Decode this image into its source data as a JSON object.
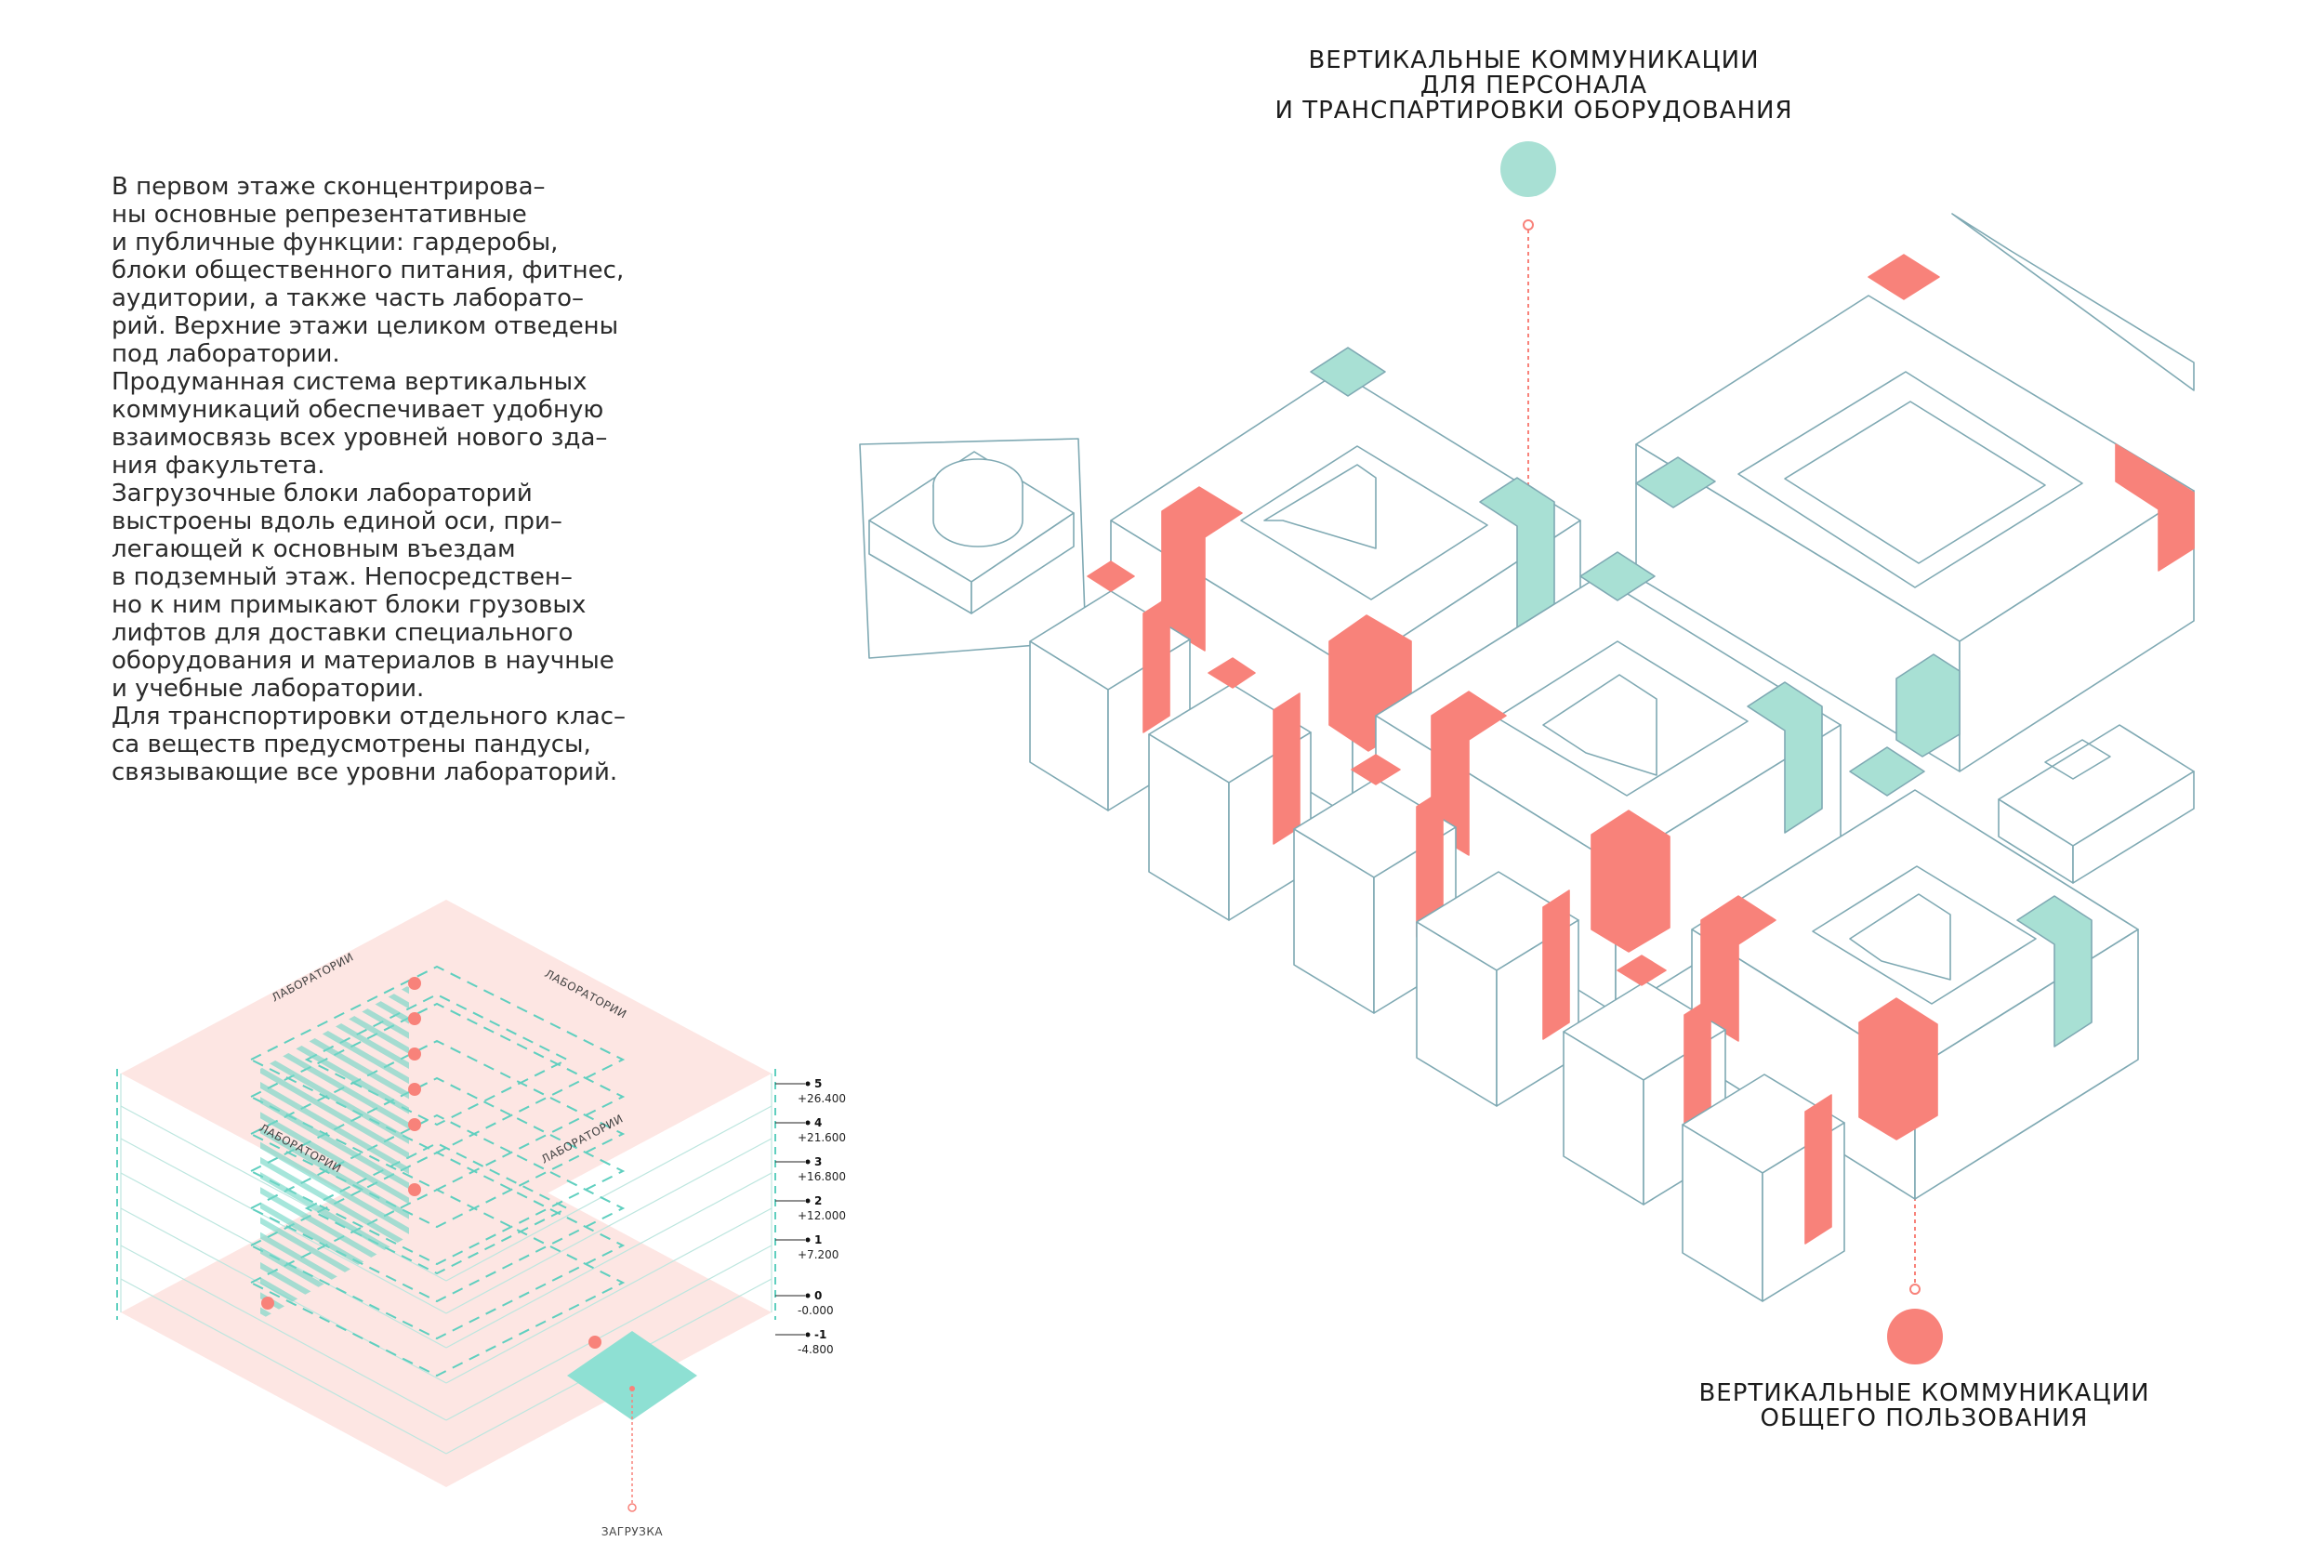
{
  "description": {
    "paragraphs": [
      [
        "В первом этаже сконцентрирова–",
        "ны основные репрезентативные",
        "и публичные функции: гардеробы,",
        "блоки общественного питания, фитнес,",
        "аудитории, а также часть лаборато–",
        "рий. Верхние этажи целиком отведены",
        "под лаборатории."
      ],
      [
        "Продуманная система вертикальных",
        "коммуникаций обеспечивает удобную",
        "взаимосвязь всех уровней нового зда–",
        "ния факультета."
      ],
      [
        "Загрузочные блоки лабораторий",
        "выстроены вдоль единой оси, при–",
        "легающей к основным въездам",
        "в подземный этаж. Непосредствен–",
        "но к ним примыкают блоки грузовых",
        "лифтов для доставки специального",
        "оборудования и материалов в научные",
        "и учебные лаборатории."
      ],
      [
        "Для транспортировки отдельного клас–",
        "са веществ предусмотрены пандусы,",
        "связывающие все уровни лабораторий."
      ]
    ]
  },
  "callouts": {
    "staff": {
      "lines": [
        "ВЕРТИКАЛЬНЫЕ КОММУНИКАЦИИ",
        "ДЛЯ ПЕРСОНАЛА",
        "И ТРАНСПАРТИРОВКИ ОБОРУДОВАНИЯ"
      ],
      "color": "#a8e0d4"
    },
    "public": {
      "lines": [
        "ВЕРТИКАЛЬНЫЕ КОММУНИКАЦИИ",
        "ОБЩЕГО ПОЛЬЗОВАНИЯ"
      ],
      "color": "#f8827a"
    }
  },
  "levels_diagram": {
    "labels": {
      "lab_1": "ЛАБОРАТОРИИ",
      "lab_2": "ЛАБОРАТОРИИ",
      "lab_3": "ЛАБОРАТОРИИ",
      "lab_4": "ЛАБОРАТОРИИ",
      "loading": "ЗАГРУЗКА"
    },
    "levels": [
      {
        "num": "5",
        "elev": "+26.400"
      },
      {
        "num": "4",
        "elev": "+21.600"
      },
      {
        "num": "3",
        "elev": "+16.800"
      },
      {
        "num": "2",
        "elev": "+12.000"
      },
      {
        "num": "1",
        "elev": "+7.200"
      },
      {
        "num": "0",
        "elev": "-0.000"
      },
      {
        "num": "-1",
        "elev": "-4.800"
      }
    ]
  },
  "colors": {
    "accent_red": "#f8827a",
    "accent_teal": "#a8e0d4",
    "outline": "#7fa9b3",
    "floor_pink": "#fde6e3"
  }
}
